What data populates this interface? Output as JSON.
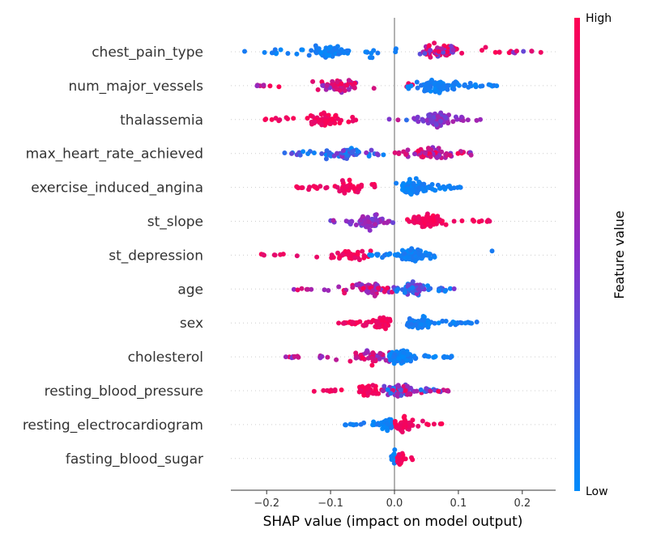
{
  "chart_data": {
    "type": "scatter",
    "subtype": "shap-beeswarm",
    "xlabel": "SHAP value (impact on model output)",
    "xlim": [
      -0.255,
      0.25
    ],
    "x_ticks": [
      -0.2,
      -0.1,
      0,
      0.1,
      0.2
    ],
    "x_tick_labels": [
      "−0.2",
      "−0.1",
      "0.0",
      "0.1",
      "0.2"
    ],
    "zero_line": 0,
    "colorbar": {
      "title": "Feature value",
      "high_label": "High",
      "low_label": "Low",
      "low_color": "#008bfb",
      "high_color": "#ff0052"
    },
    "features": [
      {
        "name": "chest_pain_type",
        "clusters": [
          {
            "x_min": -0.24,
            "x_max": -0.06,
            "center": -0.105,
            "color": "low",
            "n": 70
          },
          {
            "x_min": -0.06,
            "x_max": -0.02,
            "center": -0.04,
            "color": "low",
            "n": 8
          },
          {
            "x_min": 0.0,
            "x_max": 0.01,
            "center": 0.003,
            "color": "low",
            "n": 3
          },
          {
            "x_min": 0.04,
            "x_max": 0.23,
            "center": 0.075,
            "color": "mixed-high",
            "n": 85
          }
        ]
      },
      {
        "name": "num_major_vessels",
        "clusters": [
          {
            "x_min": -0.22,
            "x_max": -0.03,
            "center": -0.09,
            "color": "high-mid",
            "n": 60
          },
          {
            "x_min": 0.01,
            "x_max": 0.03,
            "center": 0.015,
            "color": "high",
            "n": 3
          },
          {
            "x_min": 0.02,
            "x_max": 0.16,
            "center": 0.065,
            "color": "low",
            "n": 100
          }
        ]
      },
      {
        "name": "thalassemia",
        "clusters": [
          {
            "x_min": -0.21,
            "x_max": -0.06,
            "center": -0.11,
            "color": "high",
            "n": 70
          },
          {
            "x_min": -0.01,
            "x_max": 0.02,
            "center": 0.005,
            "color": "mixed",
            "n": 3
          },
          {
            "x_min": 0.03,
            "x_max": 0.14,
            "center": 0.07,
            "color": "mid",
            "n": 90
          }
        ]
      },
      {
        "name": "max_heart_rate_achieved",
        "clusters": [
          {
            "x_min": -0.18,
            "x_max": -0.01,
            "center": -0.08,
            "color": "low-mid",
            "n": 70
          },
          {
            "x_min": 0.0,
            "x_max": 0.13,
            "center": 0.06,
            "color": "high-mid",
            "n": 90
          }
        ]
      },
      {
        "name": "exercise_induced_angina",
        "clusters": [
          {
            "x_min": -0.155,
            "x_max": -0.03,
            "center": -0.07,
            "color": "high",
            "n": 55
          },
          {
            "x_min": 0.0,
            "x_max": 0.11,
            "center": 0.03,
            "color": "low",
            "n": 110
          }
        ]
      },
      {
        "name": "st_slope",
        "clusters": [
          {
            "x_min": -0.1,
            "x_max": 0.0,
            "center": -0.04,
            "color": "mid",
            "n": 70
          },
          {
            "x_min": 0.02,
            "x_max": 0.15,
            "center": 0.05,
            "color": "high",
            "n": 90
          }
        ]
      },
      {
        "name": "st_depression",
        "clusters": [
          {
            "x_min": -0.21,
            "x_max": -0.02,
            "center": -0.07,
            "color": "high",
            "n": 45
          },
          {
            "x_min": -0.04,
            "x_max": 0.07,
            "center": 0.03,
            "color": "low",
            "n": 110
          },
          {
            "x_min": 0.15,
            "x_max": 0.155,
            "center": 0.152,
            "color": "low",
            "n": 1
          }
        ]
      },
      {
        "name": "age",
        "clusters": [
          {
            "x_min": -0.16,
            "x_max": 0.0,
            "center": -0.04,
            "color": "high-mid",
            "n": 70
          },
          {
            "x_min": 0.0,
            "x_max": 0.11,
            "center": 0.03,
            "color": "low-mid",
            "n": 90
          }
        ]
      },
      {
        "name": "sex",
        "clusters": [
          {
            "x_min": -0.09,
            "x_max": -0.005,
            "center": -0.02,
            "color": "high",
            "n": 70
          },
          {
            "x_min": 0.02,
            "x_max": 0.13,
            "center": 0.04,
            "color": "low",
            "n": 80
          }
        ]
      },
      {
        "name": "cholesterol",
        "clusters": [
          {
            "x_min": -0.17,
            "x_max": 0.0,
            "center": -0.03,
            "color": "high-mid",
            "n": 60
          },
          {
            "x_min": -0.01,
            "x_max": 0.09,
            "center": 0.01,
            "color": "low",
            "n": 100
          }
        ]
      },
      {
        "name": "resting_blood_pressure",
        "clusters": [
          {
            "x_min": -0.13,
            "x_max": -0.02,
            "center": -0.04,
            "color": "high",
            "n": 50
          },
          {
            "x_min": -0.02,
            "x_max": 0.09,
            "center": 0.005,
            "color": "mixed",
            "n": 100
          }
        ]
      },
      {
        "name": "resting_electrocardiogram",
        "clusters": [
          {
            "x_min": -0.08,
            "x_max": 0.0,
            "center": -0.01,
            "color": "low",
            "n": 55
          },
          {
            "x_min": 0.0,
            "x_max": 0.075,
            "center": 0.015,
            "color": "high",
            "n": 60
          }
        ]
      },
      {
        "name": "fasting_blood_sugar",
        "clusters": [
          {
            "x_min": -0.005,
            "x_max": 0.005,
            "center": 0.0,
            "color": "low",
            "n": 30
          },
          {
            "x_min": 0.0,
            "x_max": 0.035,
            "center": 0.01,
            "color": "high",
            "n": 20
          }
        ]
      }
    ]
  }
}
